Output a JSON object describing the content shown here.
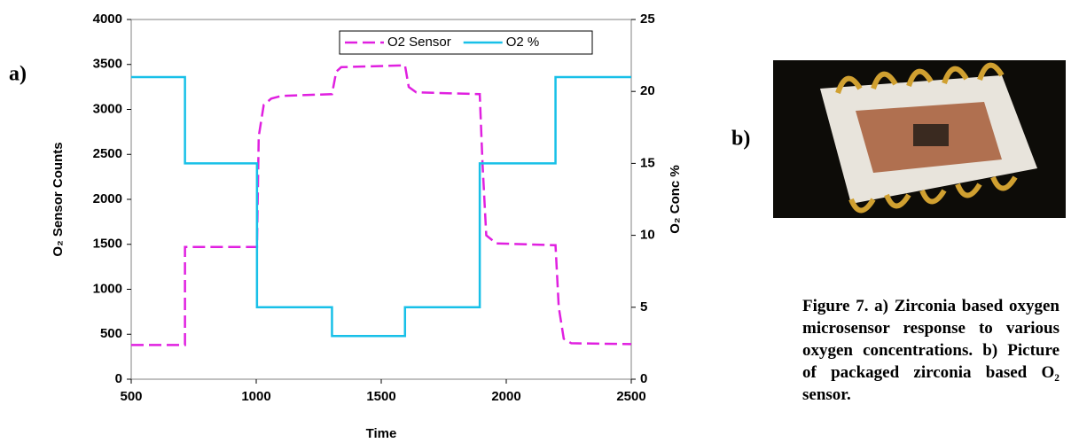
{
  "chart_data": {
    "type": "line",
    "xlabel": "Time",
    "ylabel": "O₂ Sensor Counts",
    "y2label": "O₂ Conc %",
    "xlim": [
      500,
      2500
    ],
    "xticks": [
      500,
      1000,
      1500,
      2000,
      2500
    ],
    "ylim": [
      0,
      4000
    ],
    "yticks": [
      0,
      500,
      1000,
      1500,
      2000,
      2500,
      3000,
      3500,
      4000
    ],
    "y2lim": [
      0,
      25
    ],
    "y2ticks": [
      0,
      5,
      10,
      15,
      20,
      25
    ],
    "legend": "top-right",
    "series": [
      {
        "name": "O2 Sensor",
        "color": "#e020e0",
        "dash": true,
        "x": [
          500,
          715,
          715,
          1003,
          1010,
          1030,
          1060,
          1100,
          1303,
          1320,
          1340,
          1595,
          1610,
          1640,
          1894,
          1905,
          1920,
          1960,
          2197,
          2210,
          2230,
          2260,
          2500
        ],
        "values": [
          380,
          380,
          1470,
          1470,
          2700,
          3050,
          3120,
          3150,
          3170,
          3420,
          3470,
          3490,
          3250,
          3190,
          3170,
          2400,
          1600,
          1510,
          1490,
          800,
          450,
          400,
          390
        ]
      },
      {
        "name": "O2 %",
        "color": "#18c0e8",
        "dash": false,
        "axis": "y2",
        "x": [
          500,
          715,
          715,
          1003,
          1003,
          1303,
          1303,
          1595,
          1595,
          1894,
          1894,
          2197,
          2197,
          2500
        ],
        "values": [
          21,
          21,
          15,
          15,
          5,
          5,
          3,
          3,
          5,
          5,
          15,
          15,
          21,
          21
        ]
      }
    ]
  },
  "panel_labels": [
    "a)",
    "b)"
  ],
  "caption": "Figure 7. a) Zirconia based oxygen microsensor response to various oxygen concentrations. b) Picture of packaged zirconia based O₂ sensor."
}
